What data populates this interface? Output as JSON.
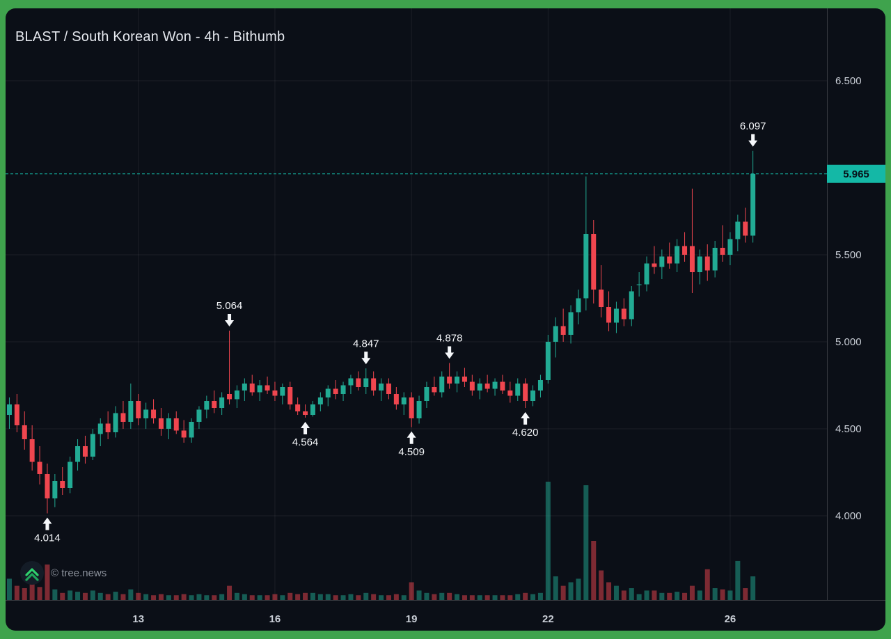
{
  "header": {
    "title": "BLAST / South Korean Won - 4h - Bithumb"
  },
  "watermark": {
    "text": "© tree.news",
    "logo": "chevrons-up-icon"
  },
  "chart_data": {
    "type": "candlestick",
    "title": "BLAST / South Korean Won - 4h - Bithumb",
    "interval": "4h",
    "exchange": "Bithumb",
    "grid": true,
    "ylim": [
      3.516,
      6.916
    ],
    "y_ticks": [
      {
        "value": 6.5,
        "label": "6.500"
      },
      {
        "value": 5.5,
        "label": "5.500"
      },
      {
        "value": 5.0,
        "label": "5.000"
      },
      {
        "value": 4.5,
        "label": "4.500"
      },
      {
        "value": 4.0,
        "label": "4.000"
      }
    ],
    "x_ticks": [
      {
        "index": 17,
        "label": "13"
      },
      {
        "index": 35,
        "label": "16"
      },
      {
        "index": 53,
        "label": "19"
      },
      {
        "index": 71,
        "label": "22"
      },
      {
        "index": 95,
        "label": "26"
      }
    ],
    "current_price": {
      "value": 5.965,
      "label": "5.965"
    },
    "annotations": [
      {
        "index": 5,
        "price": 4.014,
        "label": "4.014",
        "dir": "up"
      },
      {
        "index": 29,
        "price": 5.064,
        "label": "5.064",
        "dir": "down"
      },
      {
        "index": 39,
        "price": 4.564,
        "label": "4.564",
        "dir": "up"
      },
      {
        "index": 47,
        "price": 4.847,
        "label": "4.847",
        "dir": "down"
      },
      {
        "index": 53,
        "price": 4.509,
        "label": "4.509",
        "dir": "up"
      },
      {
        "index": 58,
        "price": 4.878,
        "label": "4.878",
        "dir": "down"
      },
      {
        "index": 68,
        "price": 4.62,
        "label": "4.620",
        "dir": "up"
      },
      {
        "index": 98,
        "price": 6.097,
        "label": "6.097",
        "dir": "down"
      }
    ],
    "colors": {
      "up": "#22ab94",
      "down": "#f0464f",
      "volume_up": "rgba(34,171,148,0.5)",
      "volume_down": "rgba(240,70,79,0.5)",
      "accent": "#14b8a6",
      "badge_text": "#071018",
      "grid": "rgba(255,255,255,0.07)",
      "axis_line": "rgba(255,255,255,0.18)",
      "axis_text": "#c9ced6",
      "annotation": "#f5f7fa",
      "background": "#0b0f17",
      "frame": "#3fa34d",
      "logo_green": "#2fd16d"
    },
    "candles": [
      [
        4.58,
        4.68,
        4.5,
        4.64,
        18
      ],
      [
        4.64,
        4.7,
        4.48,
        4.52,
        12
      ],
      [
        4.52,
        4.6,
        4.38,
        4.44,
        10
      ],
      [
        4.44,
        4.52,
        4.26,
        4.31,
        14
      ],
      [
        4.31,
        4.4,
        4.18,
        4.24,
        11
      ],
      [
        4.24,
        4.3,
        4.014,
        4.1,
        30
      ],
      [
        4.1,
        4.24,
        4.05,
        4.2,
        9
      ],
      [
        4.2,
        4.28,
        4.12,
        4.16,
        6
      ],
      [
        4.16,
        4.34,
        4.13,
        4.31,
        8
      ],
      [
        4.31,
        4.44,
        4.26,
        4.4,
        7
      ],
      [
        4.4,
        4.46,
        4.3,
        4.34,
        6
      ],
      [
        4.34,
        4.5,
        4.32,
        4.47,
        8
      ],
      [
        4.47,
        4.56,
        4.4,
        4.53,
        6
      ],
      [
        4.53,
        4.6,
        4.44,
        4.48,
        5
      ],
      [
        4.48,
        4.63,
        4.45,
        4.59,
        7
      ],
      [
        4.59,
        4.66,
        4.5,
        4.54,
        5
      ],
      [
        4.54,
        4.76,
        4.5,
        4.66,
        9
      ],
      [
        4.66,
        4.7,
        4.52,
        4.56,
        6
      ],
      [
        4.56,
        4.65,
        4.5,
        4.61,
        5
      ],
      [
        4.61,
        4.67,
        4.53,
        4.56,
        4
      ],
      [
        4.56,
        4.62,
        4.46,
        4.5,
        5
      ],
      [
        4.5,
        4.59,
        4.44,
        4.56,
        4
      ],
      [
        4.56,
        4.6,
        4.47,
        4.49,
        4
      ],
      [
        4.49,
        4.55,
        4.42,
        4.45,
        5
      ],
      [
        4.45,
        4.56,
        4.42,
        4.54,
        4
      ],
      [
        4.54,
        4.63,
        4.5,
        4.61,
        5
      ],
      [
        4.61,
        4.69,
        4.56,
        4.66,
        4
      ],
      [
        4.66,
        4.72,
        4.59,
        4.62,
        4
      ],
      [
        4.62,
        4.71,
        4.58,
        4.68,
        5
      ],
      [
        4.7,
        5.064,
        4.64,
        4.67,
        12
      ],
      [
        4.67,
        4.75,
        4.62,
        4.72,
        6
      ],
      [
        4.72,
        4.79,
        4.66,
        4.76,
        5
      ],
      [
        4.76,
        4.81,
        4.69,
        4.71,
        4
      ],
      [
        4.71,
        4.78,
        4.66,
        4.75,
        4
      ],
      [
        4.75,
        4.8,
        4.7,
        4.72,
        4
      ],
      [
        4.72,
        4.77,
        4.66,
        4.69,
        5
      ],
      [
        4.69,
        4.76,
        4.64,
        4.74,
        4
      ],
      [
        4.74,
        4.77,
        4.61,
        4.64,
        6
      ],
      [
        4.64,
        4.68,
        4.58,
        4.6,
        5
      ],
      [
        4.6,
        4.64,
        4.564,
        4.58,
        6
      ],
      [
        4.58,
        4.66,
        4.57,
        4.64,
        6
      ],
      [
        4.64,
        4.71,
        4.6,
        4.68,
        5
      ],
      [
        4.68,
        4.75,
        4.63,
        4.73,
        5
      ],
      [
        4.73,
        4.78,
        4.67,
        4.7,
        4
      ],
      [
        4.7,
        4.77,
        4.66,
        4.75,
        4
      ],
      [
        4.75,
        4.81,
        4.7,
        4.79,
        5
      ],
      [
        4.79,
        4.83,
        4.72,
        4.74,
        4
      ],
      [
        4.74,
        4.847,
        4.7,
        4.79,
        6
      ],
      [
        4.79,
        4.83,
        4.69,
        4.72,
        5
      ],
      [
        4.72,
        4.79,
        4.66,
        4.76,
        4
      ],
      [
        4.76,
        4.79,
        4.67,
        4.7,
        4
      ],
      [
        4.7,
        4.74,
        4.61,
        4.64,
        5
      ],
      [
        4.64,
        4.71,
        4.58,
        4.68,
        4
      ],
      [
        4.68,
        4.71,
        4.509,
        4.56,
        15
      ],
      [
        4.56,
        4.69,
        4.53,
        4.66,
        8
      ],
      [
        4.66,
        4.77,
        4.62,
        4.74,
        6
      ],
      [
        4.74,
        4.8,
        4.69,
        4.71,
        5
      ],
      [
        4.71,
        4.83,
        4.68,
        4.8,
        6
      ],
      [
        4.8,
        4.878,
        4.73,
        4.76,
        6
      ],
      [
        4.76,
        4.83,
        4.71,
        4.8,
        5
      ],
      [
        4.8,
        4.85,
        4.74,
        4.77,
        4
      ],
      [
        4.77,
        4.81,
        4.69,
        4.72,
        4
      ],
      [
        4.72,
        4.79,
        4.67,
        4.76,
        4
      ],
      [
        4.76,
        4.81,
        4.71,
        4.73,
        4
      ],
      [
        4.73,
        4.79,
        4.69,
        4.77,
        4
      ],
      [
        4.77,
        4.81,
        4.7,
        4.72,
        4
      ],
      [
        4.72,
        4.77,
        4.65,
        4.69,
        4
      ],
      [
        4.69,
        4.79,
        4.66,
        4.76,
        5
      ],
      [
        4.76,
        4.79,
        4.62,
        4.66,
        6
      ],
      [
        4.66,
        4.75,
        4.63,
        4.72,
        5
      ],
      [
        4.72,
        4.81,
        4.68,
        4.78,
        6
      ],
      [
        4.78,
        5.04,
        4.76,
        5.0,
        100
      ],
      [
        5.0,
        5.14,
        4.91,
        5.09,
        20
      ],
      [
        5.09,
        5.19,
        5.0,
        5.04,
        12
      ],
      [
        5.04,
        5.21,
        4.99,
        5.17,
        15
      ],
      [
        5.17,
        5.3,
        5.1,
        5.25,
        18
      ],
      [
        5.25,
        5.95,
        5.18,
        5.62,
        97
      ],
      [
        5.62,
        5.7,
        5.22,
        5.3,
        50
      ],
      [
        5.3,
        5.44,
        5.14,
        5.2,
        25
      ],
      [
        5.2,
        5.29,
        5.06,
        5.11,
        15
      ],
      [
        5.11,
        5.23,
        5.05,
        5.19,
        12
      ],
      [
        5.19,
        5.25,
        5.09,
        5.13,
        8
      ],
      [
        5.13,
        5.32,
        5.09,
        5.29,
        10
      ],
      [
        5.33,
        5.4,
        5.26,
        5.33,
        5
      ],
      [
        5.33,
        5.49,
        5.29,
        5.45,
        8
      ],
      [
        5.45,
        5.55,
        5.39,
        5.43,
        8
      ],
      [
        5.43,
        5.53,
        5.36,
        5.49,
        6
      ],
      [
        5.49,
        5.57,
        5.42,
        5.45,
        6
      ],
      [
        5.45,
        5.59,
        5.4,
        5.55,
        7
      ],
      [
        5.55,
        5.63,
        5.46,
        5.5,
        6
      ],
      [
        5.55,
        5.88,
        5.28,
        5.4,
        12
      ],
      [
        5.4,
        5.53,
        5.33,
        5.49,
        8
      ],
      [
        5.49,
        5.56,
        5.35,
        5.41,
        26
      ],
      [
        5.41,
        5.58,
        5.37,
        5.54,
        10
      ],
      [
        5.54,
        5.67,
        5.46,
        5.5,
        9
      ],
      [
        5.5,
        5.63,
        5.44,
        5.59,
        8
      ],
      [
        5.59,
        5.73,
        5.52,
        5.69,
        33
      ],
      [
        5.69,
        5.77,
        5.57,
        5.61,
        10
      ],
      [
        5.61,
        6.097,
        5.57,
        5.965,
        20
      ]
    ]
  }
}
